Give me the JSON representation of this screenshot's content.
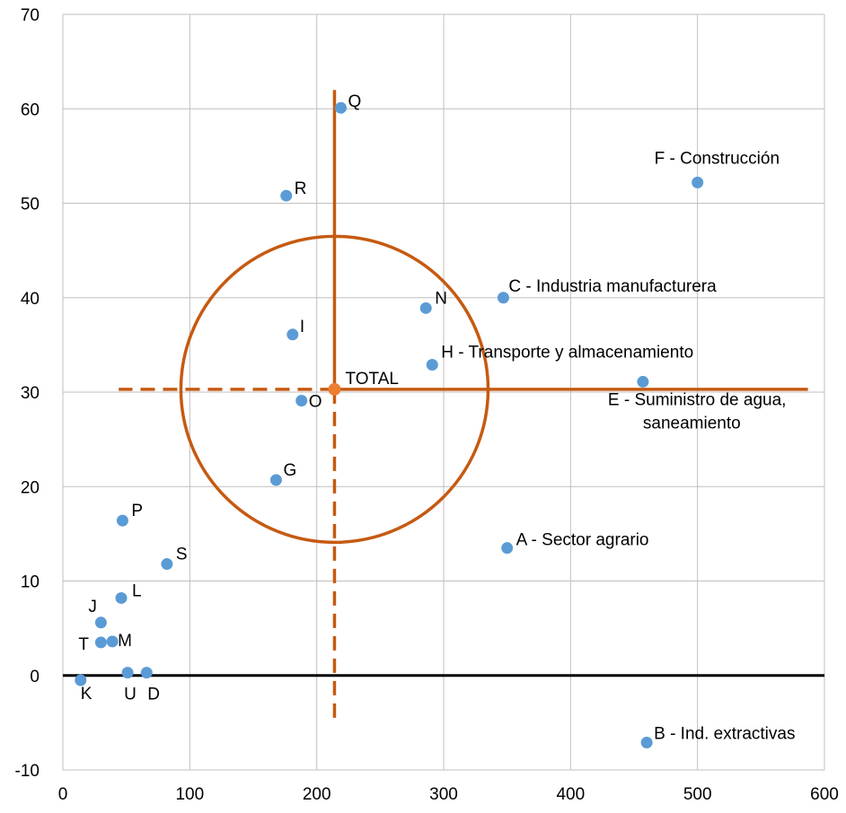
{
  "chart_data": {
    "type": "scatter",
    "title": "",
    "xlabel": "",
    "ylabel": "",
    "xlim": [
      0,
      600
    ],
    "ylim": [
      -10,
      70
    ],
    "x_ticks": [
      0,
      100,
      200,
      300,
      400,
      500,
      600
    ],
    "y_ticks": [
      -10,
      0,
      10,
      20,
      30,
      40,
      50,
      60,
      70
    ],
    "grid": true,
    "legend": "none",
    "colors": {
      "point": "#5b9bd5",
      "total": "#ed7d31",
      "guides": "#c55a11",
      "zero_line": "#000000",
      "grid": "#bfbfbf"
    },
    "points": [
      {
        "label": "Q",
        "x": 219,
        "y": 60.1
      },
      {
        "label": "F - Construcción",
        "x": 500,
        "y": 52.2
      },
      {
        "label": "R",
        "x": 176,
        "y": 50.8
      },
      {
        "label": "C - Industria manufacturera",
        "x": 347,
        "y": 40.0
      },
      {
        "label": "N",
        "x": 286,
        "y": 38.9
      },
      {
        "label": "I",
        "x": 181,
        "y": 36.1
      },
      {
        "label": "H - Transporte y almacenamiento",
        "x": 291,
        "y": 32.9
      },
      {
        "label": "E - Suministro de agua,",
        "label2": "saneamiento",
        "x": 457,
        "y": 31.1
      },
      {
        "label": "O",
        "x": 188,
        "y": 29.1
      },
      {
        "label": "G",
        "x": 168,
        "y": 20.7
      },
      {
        "label": "P",
        "x": 47,
        "y": 16.4
      },
      {
        "label": "A - Sector agrario",
        "x": 350,
        "y": 13.5
      },
      {
        "label": "S",
        "x": 82,
        "y": 11.8
      },
      {
        "label": "L",
        "x": 46,
        "y": 8.2
      },
      {
        "label": "J",
        "x": 30,
        "y": 5.6
      },
      {
        "label": "T",
        "x": 30,
        "y": 3.5
      },
      {
        "label": "M",
        "x": 39,
        "y": 3.6
      },
      {
        "label": "U",
        "x": 51,
        "y": 0.3
      },
      {
        "label": "D",
        "x": 66,
        "y": 0.3
      },
      {
        "label": "K",
        "x": 14,
        "y": -0.5
      },
      {
        "label": "B - Ind. extractivas",
        "x": 460,
        "y": -7.1
      }
    ],
    "total": {
      "label": "TOTAL",
      "x": 214,
      "y": 30.3
    },
    "circle": {
      "cx": 214,
      "cy": 30.3,
      "rx": 121,
      "ry": 16.2
    },
    "guides": {
      "vertical": {
        "x": 214,
        "solid_top": 62,
        "dashed_bottom": -5
      },
      "horizontal": {
        "y": 30.3,
        "solid_right": 587,
        "dashed_left": 44
      }
    }
  }
}
